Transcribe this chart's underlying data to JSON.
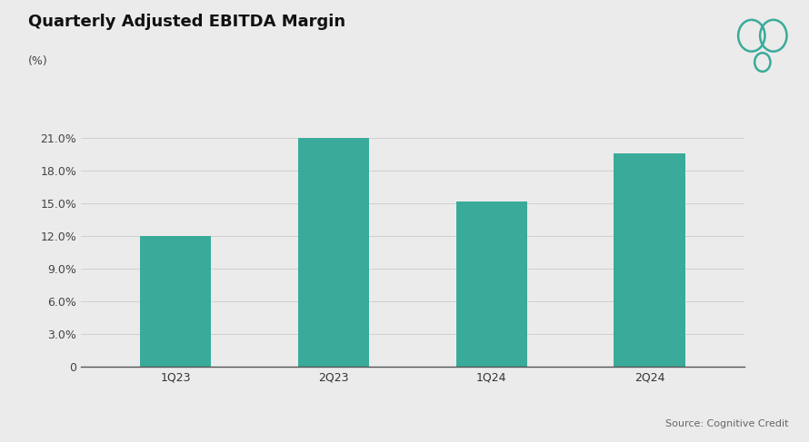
{
  "title": "Quarterly Adjusted EBITDA Margin",
  "subtitle": "(%)",
  "categories": [
    "1Q23",
    "2Q23",
    "1Q24",
    "2Q24"
  ],
  "values": [
    12.0,
    21.0,
    15.2,
    19.6
  ],
  "bar_color": "#3aab9a",
  "background_color": "#ebebeb",
  "yticks": [
    0,
    3.0,
    6.0,
    9.0,
    12.0,
    15.0,
    18.0,
    21.0
  ],
  "ylim": [
    0,
    23.5
  ],
  "source_text": "Source: Cognitive Credit",
  "title_fontsize": 13,
  "subtitle_fontsize": 9,
  "tick_fontsize": 9,
  "source_fontsize": 8,
  "logo_color": "#3aab9a",
  "bar_width": 0.45
}
